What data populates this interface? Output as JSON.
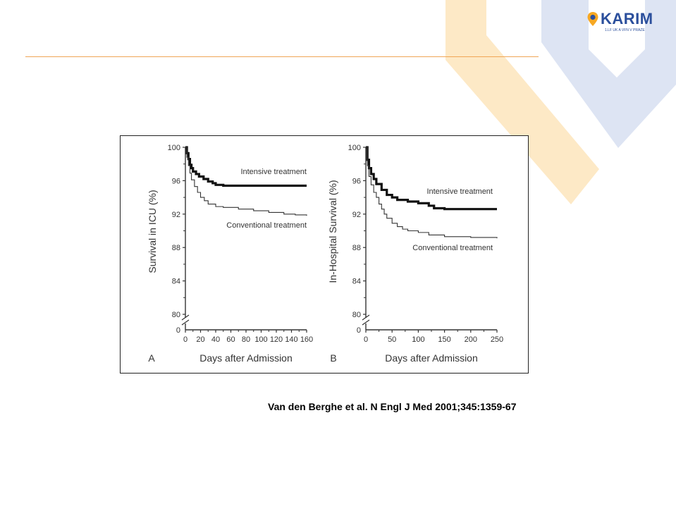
{
  "logo": {
    "name": "KARIM",
    "subtitle": "1.LF UK A VFN V PRAZE",
    "colors": {
      "blue": "#2b4f9c",
      "orange": "#f7a823"
    }
  },
  "decor_colors": {
    "orange": "#fde9c6",
    "blue": "#dde4f3",
    "rule": "#f0a656"
  },
  "citation": "Van den Berghe et al. N Engl J Med 2001;345:1359-67",
  "chart_data": [
    {
      "type": "line",
      "panel": "A",
      "title": "",
      "xlabel": "Days after Admission",
      "ylabel": "Survival in ICU (%)",
      "xlim": [
        0,
        160
      ],
      "x_ticks": [
        0,
        20,
        40,
        60,
        80,
        100,
        120,
        140,
        160
      ],
      "x_tick_labels": [
        "0",
        "20",
        "40",
        "60",
        "80",
        "100",
        "120",
        "140",
        "160"
      ],
      "ylim": [
        80,
        100
      ],
      "y_ticks": [
        80,
        84,
        88,
        92,
        96,
        100
      ],
      "y_tick_labels": [
        "80",
        "84",
        "88",
        "92",
        "96",
        "100"
      ],
      "y_zero_label": "0",
      "axis_break": true,
      "grid": false,
      "series": [
        {
          "name": "Intensive treatment",
          "line_weight": "thick",
          "x": [
            0,
            2,
            4,
            6,
            8,
            10,
            14,
            18,
            24,
            30,
            36,
            40,
            50,
            80,
            120,
            160
          ],
          "y": [
            100,
            99.3,
            98.6,
            97.9,
            97.5,
            97.1,
            96.8,
            96.5,
            96.2,
            95.9,
            95.7,
            95.5,
            95.4,
            95.4,
            95.4,
            95.4
          ]
        },
        {
          "name": "Conventional treatment",
          "line_weight": "thin",
          "x": [
            0,
            2,
            4,
            6,
            8,
            12,
            16,
            20,
            25,
            30,
            40,
            50,
            70,
            90,
            110,
            130,
            145,
            160
          ],
          "y": [
            100,
            98.8,
            97.8,
            96.9,
            96.1,
            95.3,
            94.6,
            94.0,
            93.6,
            93.2,
            92.9,
            92.8,
            92.6,
            92.4,
            92.2,
            92.0,
            91.9,
            91.8
          ]
        }
      ]
    },
    {
      "type": "line",
      "panel": "B",
      "title": "",
      "xlabel": "Days after Admission",
      "ylabel": "In-Hospital Survival (%)",
      "xlim": [
        0,
        250
      ],
      "x_ticks": [
        0,
        50,
        100,
        150,
        200,
        250
      ],
      "x_tick_labels": [
        "0",
        "50",
        "100",
        "150",
        "200",
        "250"
      ],
      "ylim": [
        80,
        100
      ],
      "y_ticks": [
        80,
        84,
        88,
        92,
        96,
        100
      ],
      "y_tick_labels": [
        "80",
        "84",
        "88",
        "92",
        "96",
        "100"
      ],
      "y_zero_label": "0",
      "axis_break": true,
      "grid": false,
      "series": [
        {
          "name": "Intensive treatment",
          "line_weight": "thick",
          "x": [
            0,
            3,
            6,
            10,
            15,
            20,
            30,
            40,
            50,
            60,
            80,
            100,
            120,
            130,
            150,
            200,
            250
          ],
          "y": [
            100,
            98.5,
            97.5,
            96.8,
            96.2,
            95.6,
            94.9,
            94.3,
            94.0,
            93.7,
            93.5,
            93.3,
            93.0,
            92.7,
            92.6,
            92.6,
            92.6
          ]
        },
        {
          "name": "Conventional treatment",
          "line_weight": "thin",
          "x": [
            0,
            3,
            6,
            10,
            15,
            20,
            25,
            30,
            35,
            40,
            50,
            60,
            70,
            80,
            100,
            120,
            150,
            200,
            250
          ],
          "y": [
            100,
            97.8,
            96.5,
            95.5,
            94.6,
            94.0,
            93.2,
            92.6,
            92.0,
            91.5,
            90.9,
            90.5,
            90.2,
            90.0,
            89.8,
            89.5,
            89.3,
            89.2,
            89.1
          ]
        }
      ]
    }
  ]
}
